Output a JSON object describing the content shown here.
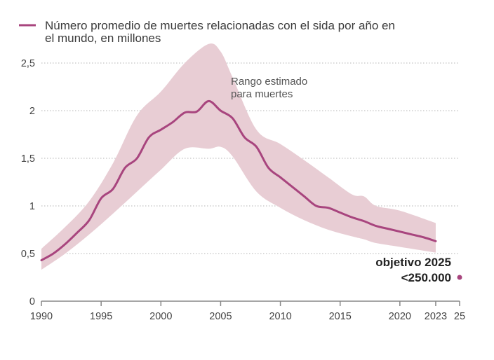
{
  "chart_data": {
    "type": "line",
    "title": "Número promedio de muertes relacionadas con el sida por año en el mundo, en millones",
    "title_lines": [
      "Número promedio de muertes relacionadas con el sida por año en",
      "el mundo, en millones"
    ],
    "xlabel": "",
    "ylabel": "",
    "xlim": [
      1990,
      2025
    ],
    "ylim": [
      0,
      2.5
    ],
    "grid": true,
    "legend_position": "top-left",
    "colors": {
      "line": "#a8457e",
      "band": "#e8cdd4",
      "grid": "#b5b5b5",
      "axis": "#888888"
    },
    "x_ticks": [
      {
        "value": 1990,
        "label": "1990"
      },
      {
        "value": 1995,
        "label": "1995"
      },
      {
        "value": 2000,
        "label": "2000"
      },
      {
        "value": 2005,
        "label": "2005"
      },
      {
        "value": 2010,
        "label": "2010"
      },
      {
        "value": 2015,
        "label": "2015"
      },
      {
        "value": 2020,
        "label": "2020"
      },
      {
        "value": 2023,
        "label": "2023"
      },
      {
        "value": 2025,
        "label": "25"
      }
    ],
    "y_ticks": [
      {
        "value": 0,
        "label": "0"
      },
      {
        "value": 0.5,
        "label": "0,5"
      },
      {
        "value": 1,
        "label": "1"
      },
      {
        "value": 1.5,
        "label": "1,5"
      },
      {
        "value": 2,
        "label": "2"
      },
      {
        "value": 2.5,
        "label": "2,5"
      }
    ],
    "series": [
      {
        "name": "Número promedio de muertes relacionadas con el sida por año en el mundo, en millones",
        "x": [
          1990,
          1991,
          1992,
          1993,
          1994,
          1995,
          1996,
          1997,
          1998,
          1999,
          2000,
          2001,
          2002,
          2003,
          2004,
          2005,
          2006,
          2007,
          2008,
          2009,
          2010,
          2011,
          2012,
          2013,
          2014,
          2015,
          2016,
          2017,
          2018,
          2019,
          2020,
          2021,
          2022,
          2023
        ],
        "values": [
          0.43,
          0.5,
          0.6,
          0.72,
          0.85,
          1.08,
          1.18,
          1.4,
          1.5,
          1.72,
          1.8,
          1.88,
          1.98,
          1.99,
          2.1,
          2.0,
          1.92,
          1.72,
          1.62,
          1.4,
          1.3,
          1.2,
          1.1,
          1.0,
          0.98,
          0.93,
          0.88,
          0.84,
          0.79,
          0.76,
          0.73,
          0.7,
          0.67,
          0.63
        ]
      }
    ],
    "band": {
      "name": "Rango estimado para muertes",
      "x": [
        1990,
        1992,
        1994,
        1996,
        1998,
        2000,
        2002,
        2004,
        2005,
        2006,
        2008,
        2010,
        2012,
        2014,
        2016,
        2017,
        2018,
        2020,
        2023
      ],
      "upper": [
        0.55,
        0.78,
        1.05,
        1.45,
        1.95,
        2.2,
        2.5,
        2.7,
        2.62,
        2.35,
        1.8,
        1.65,
        1.48,
        1.3,
        1.12,
        1.1,
        1.0,
        0.95,
        0.82
      ],
      "lower": [
        0.33,
        0.5,
        0.7,
        0.92,
        1.15,
        1.38,
        1.6,
        1.6,
        1.62,
        1.52,
        1.15,
        0.98,
        0.85,
        0.75,
        0.68,
        0.65,
        0.61,
        0.57,
        0.51
      ]
    },
    "annotations": {
      "band_label_lines": [
        "Rango estimado",
        "para muertes"
      ],
      "target_year_label": "objetivo 2025",
      "target_value_label": "<250.000",
      "target_point": {
        "x": 2025,
        "y": 0.25
      }
    }
  }
}
